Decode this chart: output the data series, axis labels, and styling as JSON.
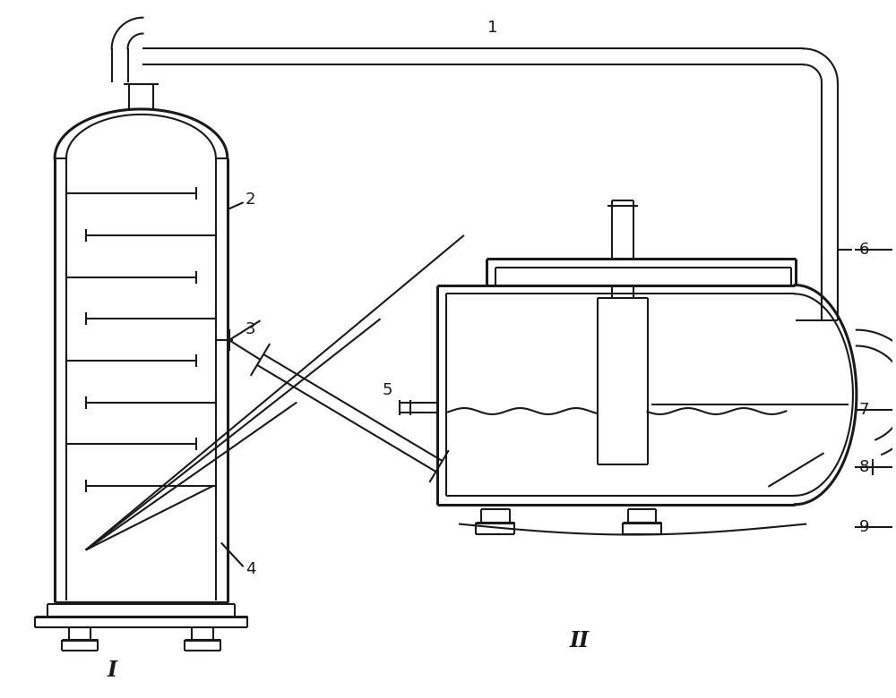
{
  "bg_color": "#ffffff",
  "line_color": "#1a1a1a",
  "lw_thin": 1.5,
  "lw_thick": 2.2,
  "fig_width": 10.0,
  "fig_height": 7.8,
  "label_I": "I",
  "label_II": "II"
}
